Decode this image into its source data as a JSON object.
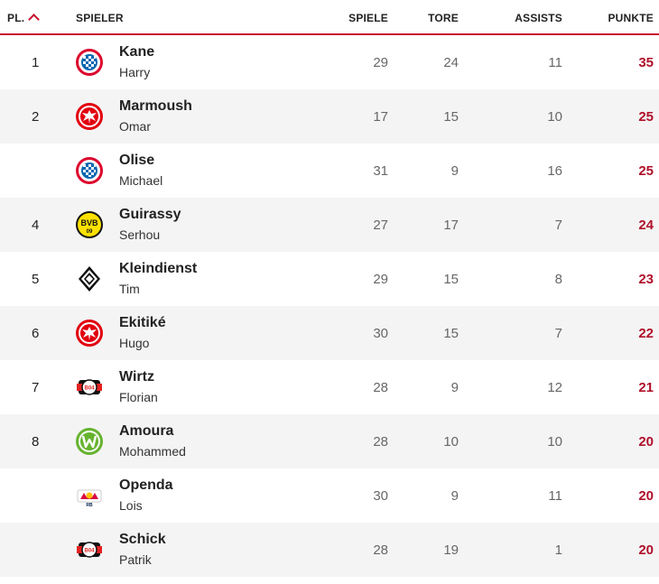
{
  "header": {
    "rank": "PL.",
    "player": "SPIELER",
    "games": "SPIELE",
    "goals": "TORE",
    "assists": "ASSISTS",
    "points": "PUNKTE"
  },
  "rows": [
    {
      "rank": "1",
      "last": "Kane",
      "first": "Harry",
      "games": "29",
      "goals": "24",
      "assists": "11",
      "points": "35",
      "club_icon": "bayern-logo-icon"
    },
    {
      "rank": "2",
      "last": "Marmoush",
      "first": "Omar",
      "games": "17",
      "goals": "15",
      "assists": "10",
      "points": "25",
      "club_icon": "frankfurt-logo-icon"
    },
    {
      "rank": "",
      "last": "Olise",
      "first": "Michael",
      "games": "31",
      "goals": "9",
      "assists": "16",
      "points": "25",
      "club_icon": "bayern-logo-icon"
    },
    {
      "rank": "4",
      "last": "Guirassy",
      "first": "Serhou",
      "games": "27",
      "goals": "17",
      "assists": "7",
      "points": "24",
      "club_icon": "dortmund-logo-icon"
    },
    {
      "rank": "5",
      "last": "Kleindienst",
      "first": "Tim",
      "games": "29",
      "goals": "15",
      "assists": "8",
      "points": "23",
      "club_icon": "gladbach-logo-icon"
    },
    {
      "rank": "6",
      "last": "Ekitiké",
      "first": "Hugo",
      "games": "30",
      "goals": "15",
      "assists": "7",
      "points": "22",
      "club_icon": "frankfurt-logo-icon"
    },
    {
      "rank": "7",
      "last": "Wirtz",
      "first": "Florian",
      "games": "28",
      "goals": "9",
      "assists": "12",
      "points": "21",
      "club_icon": "leverkusen-logo-icon"
    },
    {
      "rank": "8",
      "last": "Amoura",
      "first": "Mohammed",
      "games": "28",
      "goals": "10",
      "assists": "10",
      "points": "20",
      "club_icon": "wolfsburg-logo-icon"
    },
    {
      "rank": "",
      "last": "Openda",
      "first": "Lois",
      "games": "30",
      "goals": "9",
      "assists": "11",
      "points": "20",
      "club_icon": "leipzig-logo-icon"
    },
    {
      "rank": "",
      "last": "Schick",
      "first": "Patrik",
      "games": "28",
      "goals": "19",
      "assists": "1",
      "points": "20",
      "club_icon": "leverkusen-logo-icon"
    }
  ],
  "colors": {
    "accent": "#c8102e",
    "points": "#b0102a",
    "row_alt": "#f4f4f4"
  }
}
